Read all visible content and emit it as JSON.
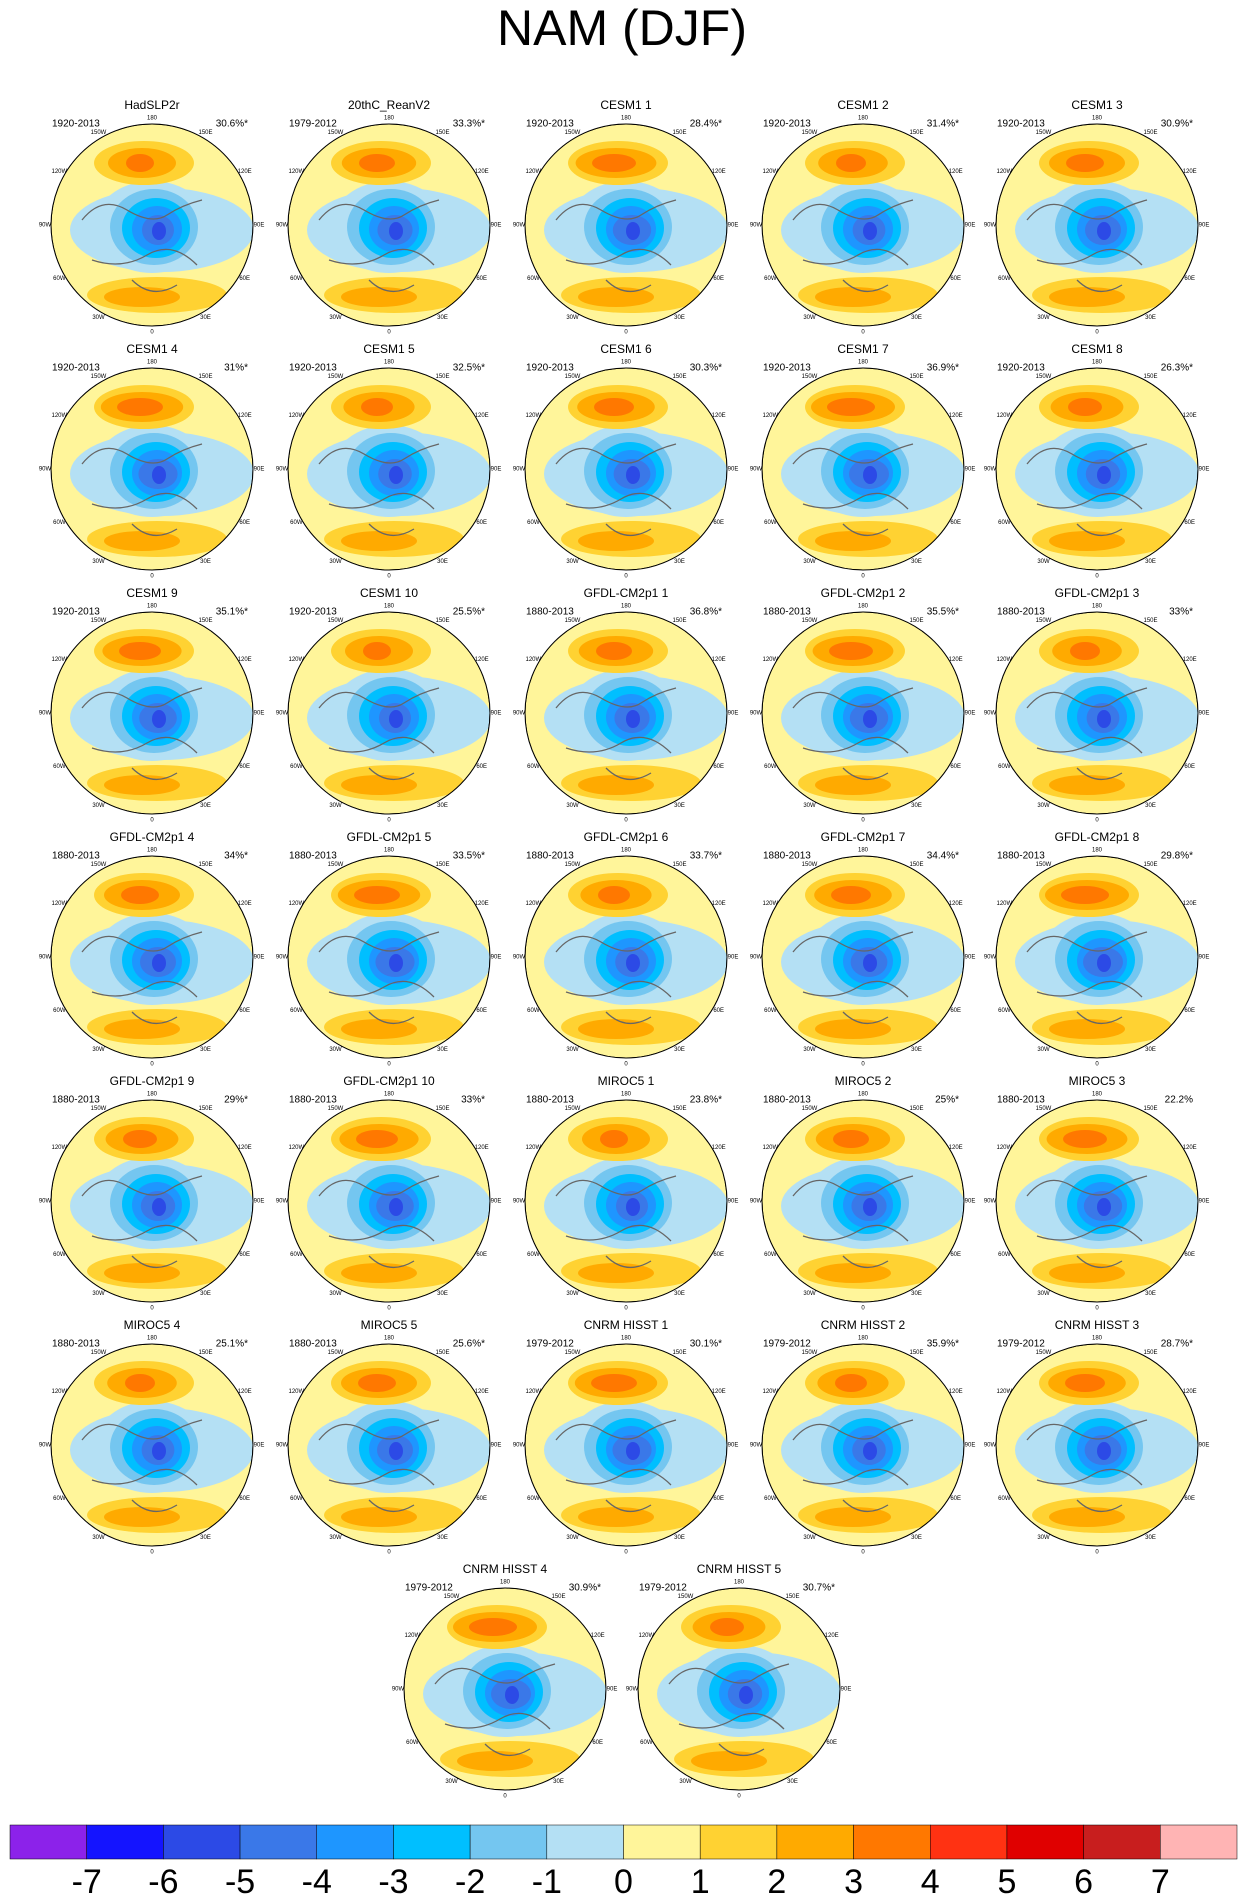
{
  "title": "NAM (DJF)",
  "panels": [
    {
      "title": "HadSLP2r",
      "period": "1920-2013",
      "variance": "30.6%*"
    },
    {
      "title": "20thC_ReanV2",
      "period": "1979-2012",
      "variance": "33.3%*"
    },
    {
      "title": "CESM1 1",
      "period": "1920-2013",
      "variance": "28.4%*"
    },
    {
      "title": "CESM1 2",
      "period": "1920-2013",
      "variance": "31.4%*"
    },
    {
      "title": "CESM1 3",
      "period": "1920-2013",
      "variance": "30.9%*"
    },
    {
      "title": "CESM1 4",
      "period": "1920-2013",
      "variance": "31%*"
    },
    {
      "title": "CESM1 5",
      "period": "1920-2013",
      "variance": "32.5%*"
    },
    {
      "title": "CESM1 6",
      "period": "1920-2013",
      "variance": "30.3%*"
    },
    {
      "title": "CESM1 7",
      "period": "1920-2013",
      "variance": "36.9%*"
    },
    {
      "title": "CESM1 8",
      "period": "1920-2013",
      "variance": "26.3%*"
    },
    {
      "title": "CESM1 9",
      "period": "1920-2013",
      "variance": "35.1%*"
    },
    {
      "title": "CESM1 10",
      "period": "1920-2013",
      "variance": "25.5%*"
    },
    {
      "title": "GFDL-CM2p1 1",
      "period": "1880-2013",
      "variance": "36.8%*"
    },
    {
      "title": "GFDL-CM2p1 2",
      "period": "1880-2013",
      "variance": "35.5%*"
    },
    {
      "title": "GFDL-CM2p1 3",
      "period": "1880-2013",
      "variance": "33%*"
    },
    {
      "title": "GFDL-CM2p1 4",
      "period": "1880-2013",
      "variance": "34%*"
    },
    {
      "title": "GFDL-CM2p1 5",
      "period": "1880-2013",
      "variance": "33.5%*"
    },
    {
      "title": "GFDL-CM2p1 6",
      "period": "1880-2013",
      "variance": "33.7%*"
    },
    {
      "title": "GFDL-CM2p1 7",
      "period": "1880-2013",
      "variance": "34.4%*"
    },
    {
      "title": "GFDL-CM2p1 8",
      "period": "1880-2013",
      "variance": "29.8%*"
    },
    {
      "title": "GFDL-CM2p1 9",
      "period": "1880-2013",
      "variance": "29%*"
    },
    {
      "title": "GFDL-CM2p1 10",
      "period": "1880-2013",
      "variance": "33%*"
    },
    {
      "title": "MIROC5 1",
      "period": "1880-2013",
      "variance": "23.8%*"
    },
    {
      "title": "MIROC5 2",
      "period": "1880-2013",
      "variance": "25%*"
    },
    {
      "title": "MIROC5 3",
      "period": "1880-2013",
      "variance": "22.2%"
    },
    {
      "title": "MIROC5 4",
      "period": "1880-2013",
      "variance": "25.1%*"
    },
    {
      "title": "MIROC5 5",
      "period": "1880-2013",
      "variance": "25.6%*"
    },
    {
      "title": "CNRM HISST 1",
      "period": "1979-2012",
      "variance": "30.1%*"
    },
    {
      "title": "CNRM HISST 2",
      "period": "1979-2012",
      "variance": "35.9%*"
    },
    {
      "title": "CNRM HISST 3",
      "period": "1979-2012",
      "variance": "28.7%*"
    },
    {
      "title": "CNRM HISST 4",
      "period": "1979-2012",
      "variance": "30.9%*"
    },
    {
      "title": "CNRM HISST 5",
      "period": "1979-2012",
      "variance": "30.7%*"
    }
  ],
  "longitude_labels": [
    "180",
    "150E",
    "120E",
    "90E",
    "60E",
    "30E",
    "0",
    "30W",
    "60W",
    "90W",
    "120W",
    "150W"
  ],
  "colorbar": {
    "colors": [
      "#8c22ea",
      "#1414ff",
      "#2c4ae6",
      "#3a78e8",
      "#1e96ff",
      "#00bfff",
      "#74c6f0",
      "#b4e0f4",
      "#fff59a",
      "#ffd232",
      "#ffaa00",
      "#ff7800",
      "#ff3212",
      "#e00000",
      "#c81e1e",
      "#ffb4b4"
    ],
    "labels": [
      "-7",
      "-6",
      "-5",
      "-4",
      "-3",
      "-2",
      "-1",
      "0",
      "1",
      "2",
      "3",
      "4",
      "5",
      "6",
      "7"
    ]
  }
}
